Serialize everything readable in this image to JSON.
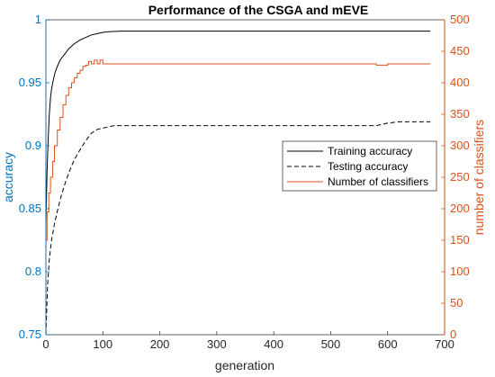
{
  "chart_data": {
    "type": "line",
    "title": "Performance of the CSGA and mEVE",
    "xlabel": "generation",
    "ylabel_left": "accuracy",
    "ylabel_right": "number of classifiers",
    "xlim": [
      0,
      700
    ],
    "ylim_left": [
      0.75,
      1
    ],
    "ylim_right": [
      0,
      500
    ],
    "x_ticks": [
      "0",
      "100",
      "200",
      "300",
      "400",
      "500",
      "600",
      "700"
    ],
    "y_left_ticks": [
      "0.75",
      "0.8",
      "0.85",
      "0.9",
      "0.95",
      "1"
    ],
    "y_right_ticks": [
      "0",
      "50",
      "100",
      "150",
      "200",
      "250",
      "300",
      "350",
      "400",
      "450",
      "500"
    ],
    "grid": false,
    "legend_position": "right-middle",
    "colors": {
      "left_axis": "#0072BD",
      "right_axis": "#D95319",
      "training": "#000000",
      "testing": "#000000",
      "classifiers": "#D95319"
    },
    "series": [
      {
        "name": "Training accuracy",
        "axis": "left",
        "style": "solid",
        "x": [
          0,
          2,
          4,
          6,
          8,
          10,
          13,
          16,
          20,
          25,
          30,
          35,
          40,
          50,
          60,
          70,
          80,
          90,
          100,
          110,
          130,
          150,
          200,
          300,
          400,
          500,
          600,
          650,
          675
        ],
        "y": [
          0.84,
          0.88,
          0.905,
          0.925,
          0.938,
          0.945,
          0.952,
          0.958,
          0.963,
          0.968,
          0.971,
          0.974,
          0.977,
          0.981,
          0.984,
          0.986,
          0.988,
          0.989,
          0.99,
          0.9905,
          0.991,
          0.991,
          0.991,
          0.991,
          0.991,
          0.991,
          0.991,
          0.991,
          0.991
        ]
      },
      {
        "name": "Testing accuracy",
        "axis": "left",
        "style": "dashed",
        "x": [
          0,
          3,
          6,
          10,
          15,
          20,
          25,
          30,
          35,
          40,
          45,
          50,
          60,
          70,
          80,
          90,
          100,
          110,
          120,
          130,
          150,
          200,
          300,
          400,
          500,
          580,
          600,
          620,
          675
        ],
        "y": [
          0.75,
          0.79,
          0.81,
          0.825,
          0.838,
          0.848,
          0.857,
          0.865,
          0.872,
          0.878,
          0.884,
          0.889,
          0.897,
          0.904,
          0.91,
          0.913,
          0.914,
          0.915,
          0.916,
          0.916,
          0.916,
          0.916,
          0.916,
          0.916,
          0.916,
          0.916,
          0.918,
          0.919,
          0.919
        ]
      },
      {
        "name": "Number of classifiers",
        "axis": "right",
        "style": "solid",
        "x": [
          0,
          2,
          5,
          8,
          12,
          15,
          20,
          25,
          30,
          35,
          40,
          45,
          50,
          55,
          60,
          65,
          70,
          75,
          80,
          85,
          90,
          95,
          100,
          110,
          120,
          200,
          300,
          400,
          500,
          580,
          600,
          675
        ],
        "y": [
          150,
          195,
          225,
          250,
          275,
          300,
          325,
          345,
          365,
          380,
          392,
          400,
          408,
          415,
          420,
          426,
          428,
          434,
          430,
          436,
          430,
          436,
          430,
          430,
          430,
          430,
          430,
          430,
          430,
          428,
          430,
          430
        ]
      }
    ]
  }
}
